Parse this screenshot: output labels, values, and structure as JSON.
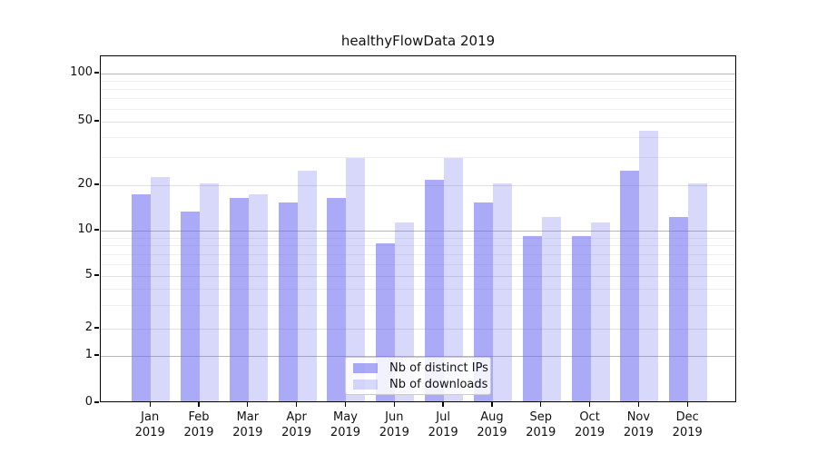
{
  "title": "healthyFlowData 2019",
  "chart_data": {
    "type": "bar",
    "title": "healthyFlowData 2019",
    "categories": [
      "Jan",
      "Feb",
      "Mar",
      "Apr",
      "May",
      "Jun",
      "Jul",
      "Aug",
      "Sep",
      "Oct",
      "Nov",
      "Dec"
    ],
    "x_year": "2019",
    "series": [
      {
        "name": "Nb of distinct IPs",
        "color": "rgba(100,100,240,0.55)",
        "values": [
          17,
          13,
          16,
          15,
          16,
          8,
          21,
          15,
          9,
          9,
          24,
          12
        ]
      },
      {
        "name": "Nb of downloads",
        "color": "rgba(100,100,240,0.25)",
        "values": [
          22,
          20,
          17,
          24,
          29,
          11,
          29,
          20,
          12,
          11,
          43,
          20
        ]
      }
    ],
    "yscale": "symlog",
    "y_ticks": [
      0,
      1,
      2,
      5,
      10,
      20,
      50,
      100
    ],
    "y_minor_ticks": [
      3,
      4,
      6,
      7,
      8,
      9,
      30,
      40,
      60,
      70,
      80,
      90
    ],
    "grid": true,
    "legend_position": "lower center"
  },
  "colors": {
    "grid_major": "#b8b8b8",
    "grid_labeled": "#e1e1e1",
    "grid_minor": "#eeeeee",
    "axis": "#000000"
  }
}
